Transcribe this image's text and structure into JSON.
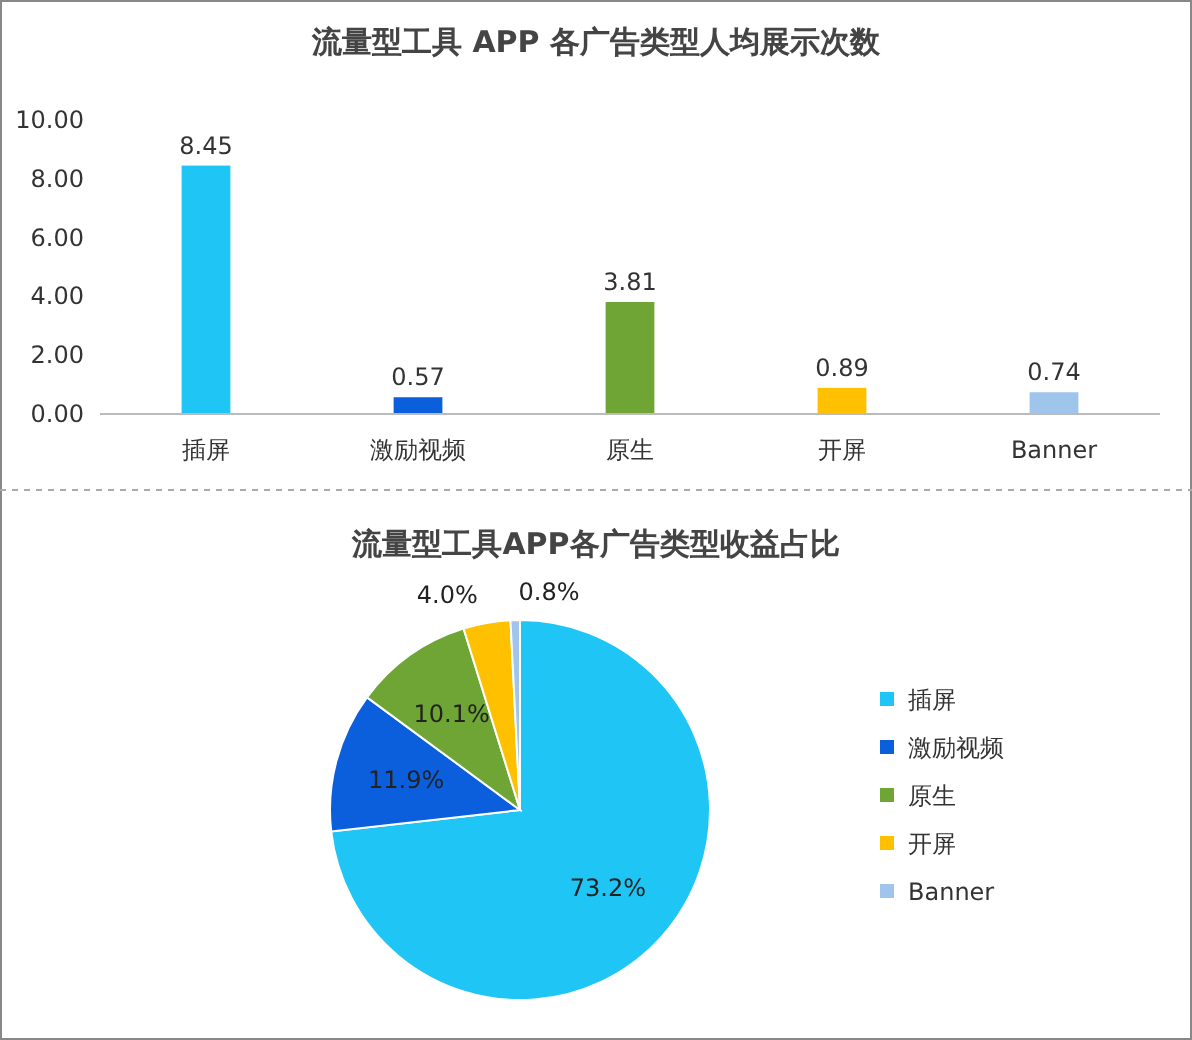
{
  "chart_data": [
    {
      "type": "bar",
      "title": "流量型工具 APP 各广告类型人均展示次数",
      "categories": [
        "插屏",
        "激励视频",
        "原生",
        "开屏",
        "Banner"
      ],
      "values": [
        8.45,
        0.57,
        3.81,
        0.89,
        0.74
      ],
      "colors": [
        "#1ec5f5",
        "#0b5fdc",
        "#6fa534",
        "#ffc000",
        "#9fc5ec"
      ],
      "ylim": [
        0,
        10
      ],
      "yticks": [
        {
          "value": 0,
          "label": "0.00"
        },
        {
          "value": 2,
          "label": "2.00"
        },
        {
          "value": 4,
          "label": "4.00"
        },
        {
          "value": 6,
          "label": "6.00"
        },
        {
          "value": 8,
          "label": "8.00"
        },
        {
          "value": 10,
          "label": "10.00"
        }
      ],
      "data_labels": true
    },
    {
      "type": "pie",
      "title": "流量型工具APP各广告类型收益占比",
      "categories": [
        "插屏",
        "激励视频",
        "原生",
        "开屏",
        "Banner"
      ],
      "values": [
        73.2,
        11.9,
        10.1,
        4.0,
        0.8
      ],
      "value_labels": [
        "73.2%",
        "11.9%",
        "10.1%",
        "4.0%",
        "0.8%"
      ],
      "colors": [
        "#1ec5f5",
        "#0b5fdc",
        "#6fa534",
        "#ffc000",
        "#9fc5ec"
      ],
      "legend": "right"
    }
  ]
}
